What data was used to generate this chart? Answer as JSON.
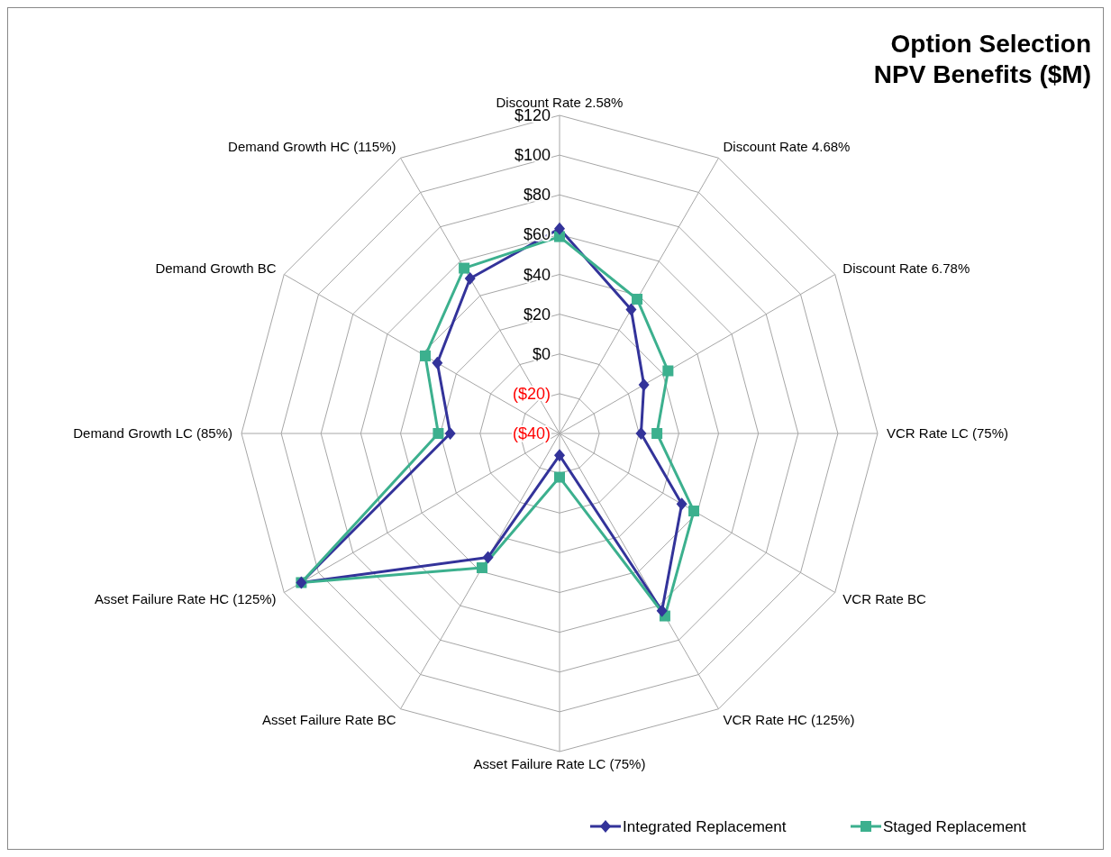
{
  "chart_data": {
    "type": "radar",
    "title": "Option Selection\nNPV Benefits ($M)",
    "categories": [
      "Discount Rate 2.58%",
      "Discount Rate 4.68%",
      "Discount Rate 6.78%",
      "VCR Rate LC (75%)",
      "VCR Rate BC",
      "VCR Rate HC (125%)",
      "Asset Failure Rate LC (75%)",
      "Asset Failure Rate BC",
      "Asset Failure Rate HC (125%)",
      "Demand Growth LC (85%)",
      "Demand Growth BC",
      "Demand Growth HC (115%)"
    ],
    "series": [
      {
        "name": "Integrated Replacement",
        "color": "#33339a",
        "marker": "diamond",
        "values": [
          63,
          32,
          9,
          1,
          31,
          63,
          -29,
          32,
          110,
          15,
          31,
          50
        ]
      },
      {
        "name": "Staged Replacement",
        "color": "#3cb08e",
        "marker": "square",
        "values": [
          59,
          38,
          23,
          9,
          38,
          66,
          -18,
          38,
          110,
          21,
          38,
          56
        ]
      }
    ],
    "ylim": [
      -40,
      120
    ],
    "yticks": [
      {
        "value": -40,
        "label": "($40)"
      },
      {
        "value": -20,
        "label": "($20)"
      },
      {
        "value": 0,
        "label": "$0"
      },
      {
        "value": 20,
        "label": "$20"
      },
      {
        "value": 40,
        "label": "$40"
      },
      {
        "value": 60,
        "label": "$60"
      },
      {
        "value": 80,
        "label": "$80"
      },
      {
        "value": 100,
        "label": "$100"
      },
      {
        "value": 120,
        "label": "$120"
      }
    ],
    "grid": true,
    "legend": "bottom right"
  }
}
